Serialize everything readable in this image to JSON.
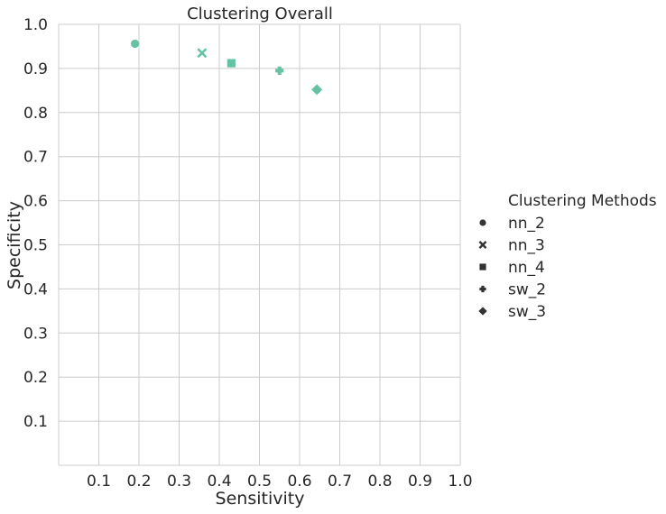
{
  "chart_data": {
    "type": "scatter",
    "title": "Clustering Overall",
    "xlabel": "Sensitivity",
    "ylabel": "Specificity",
    "xlim": [
      0,
      1.0
    ],
    "ylim": [
      0,
      1.0
    ],
    "xticks": [
      0.1,
      0.2,
      0.3,
      0.4,
      0.5,
      0.6,
      0.7,
      0.8,
      0.9,
      1.0
    ],
    "yticks": [
      0.1,
      0.2,
      0.3,
      0.4,
      0.5,
      0.6,
      0.7,
      0.8,
      0.9,
      1.0
    ],
    "xtick_labels": [
      "0.1",
      "0.2",
      "0.3",
      "0.4",
      "0.5",
      "0.6",
      "0.7",
      "0.8",
      "0.9",
      "1.0"
    ],
    "ytick_labels": [
      "0.1",
      "0.2",
      "0.3",
      "0.4",
      "0.5",
      "0.6",
      "0.7",
      "0.8",
      "0.9",
      "1.0"
    ],
    "grid": true,
    "legend_title": "Clustering Methods",
    "legend_position": "right",
    "point_color": "#66c2a5",
    "legend_marker_color": "#333333",
    "series": [
      {
        "name": "nn_2",
        "marker": "circle",
        "x": 0.19,
        "y": 0.956
      },
      {
        "name": "nn_3",
        "marker": "x",
        "x": 0.357,
        "y": 0.935
      },
      {
        "name": "nn_4",
        "marker": "square",
        "x": 0.43,
        "y": 0.912
      },
      {
        "name": "sw_2",
        "marker": "plus",
        "x": 0.55,
        "y": 0.895
      },
      {
        "name": "sw_3",
        "marker": "diamond",
        "x": 0.643,
        "y": 0.852
      }
    ]
  }
}
